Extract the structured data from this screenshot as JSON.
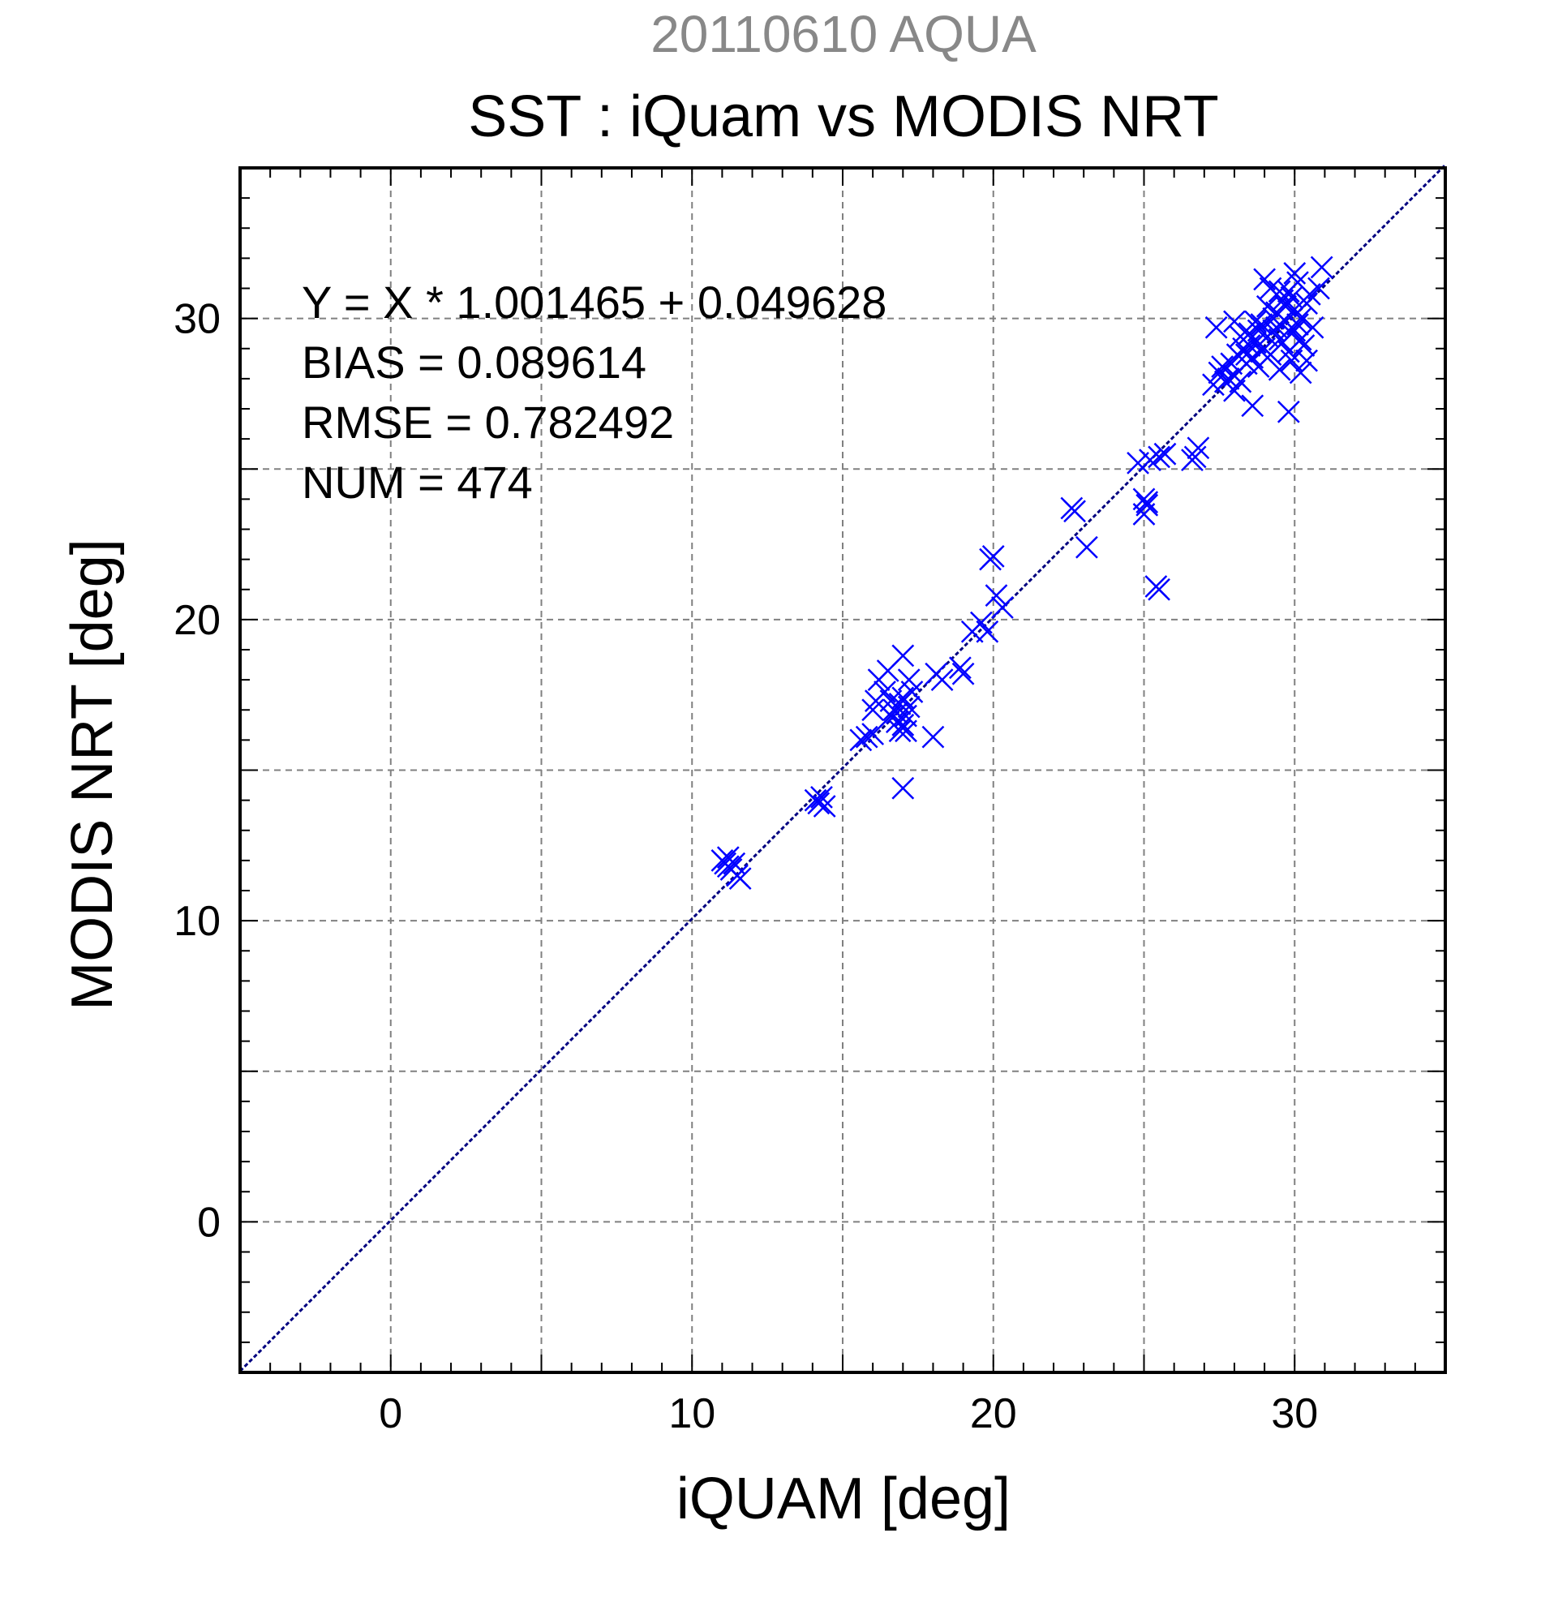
{
  "chart_data": {
    "type": "scatter",
    "subtitle": "20110610 AQUA",
    "title": "SST : iQuam vs MODIS NRT",
    "xlabel": "iQUAM [deg]",
    "ylabel": "MODIS NRT [deg]",
    "xlim": [
      -5,
      35
    ],
    "ylim": [
      -5,
      35
    ],
    "xticks": [
      "0",
      "10",
      "20",
      "30"
    ],
    "yticks": [
      "0",
      "10",
      "20",
      "30"
    ],
    "grid": true,
    "marker": "x",
    "colors": {
      "points": "#0000ff",
      "fit_line": "#000080",
      "grid": "#808080",
      "subtitle": "#888888"
    },
    "fit_line": {
      "slope": 1.001465,
      "intercept": 0.049628
    },
    "annotations": [
      "Y = X * 1.001465 + 0.049628",
      "BIAS = 0.089614",
      "RMSE = 0.782492",
      "NUM = 474"
    ],
    "series": [
      {
        "points": [
          [
            11.0,
            12.0
          ],
          [
            11.1,
            11.9
          ],
          [
            11.2,
            12.1
          ],
          [
            11.3,
            11.7
          ],
          [
            11.4,
            11.9
          ],
          [
            11.5,
            11.5
          ],
          [
            11.2,
            11.8
          ],
          [
            11.6,
            11.4
          ],
          [
            14.1,
            14.0
          ],
          [
            14.2,
            13.9
          ],
          [
            14.3,
            14.1
          ],
          [
            14.4,
            13.8
          ],
          [
            15.6,
            16.0
          ],
          [
            15.8,
            16.1
          ],
          [
            16.0,
            16.2
          ],
          [
            16.0,
            17.0
          ],
          [
            16.1,
            17.3
          ],
          [
            16.2,
            18.0
          ],
          [
            16.4,
            17.6
          ],
          [
            16.5,
            18.3
          ],
          [
            16.6,
            16.8
          ],
          [
            16.7,
            17.0
          ],
          [
            16.8,
            16.6
          ],
          [
            16.9,
            17.2
          ],
          [
            16.9,
            16.3
          ],
          [
            17.0,
            17.4
          ],
          [
            17.0,
            16.5
          ],
          [
            17.1,
            16.8
          ],
          [
            17.2,
            17.1
          ],
          [
            17.0,
            18.8
          ],
          [
            17.2,
            18.0
          ],
          [
            17.3,
            17.6
          ],
          [
            17.1,
            16.3
          ],
          [
            17.0,
            14.4
          ],
          [
            16.6,
            17.3
          ],
          [
            16.8,
            16.9
          ],
          [
            18.0,
            16.1
          ],
          [
            18.1,
            18.2
          ],
          [
            18.3,
            18.0
          ],
          [
            18.9,
            18.4
          ],
          [
            19.0,
            18.2
          ],
          [
            19.3,
            19.6
          ],
          [
            19.6,
            19.9
          ],
          [
            19.8,
            19.6
          ],
          [
            19.9,
            22.0
          ],
          [
            20.0,
            22.1
          ],
          [
            20.1,
            20.8
          ],
          [
            20.3,
            20.4
          ],
          [
            22.6,
            23.7
          ],
          [
            22.7,
            23.6
          ],
          [
            23.1,
            22.4
          ],
          [
            24.8,
            25.2
          ],
          [
            25.0,
            24.0
          ],
          [
            25.1,
            23.8
          ],
          [
            25.0,
            23.5
          ],
          [
            25.2,
            25.3
          ],
          [
            25.1,
            23.9
          ],
          [
            25.4,
            21.1
          ],
          [
            25.5,
            21.0
          ],
          [
            25.5,
            25.4
          ],
          [
            25.7,
            25.5
          ],
          [
            26.6,
            25.3
          ],
          [
            26.7,
            25.4
          ],
          [
            26.8,
            25.7
          ],
          [
            27.3,
            27.8
          ],
          [
            27.4,
            29.7
          ],
          [
            27.5,
            28.2
          ],
          [
            27.6,
            28.4
          ],
          [
            27.7,
            27.9
          ],
          [
            27.8,
            28.0
          ],
          [
            27.9,
            28.5
          ],
          [
            28.0,
            28.1
          ],
          [
            28.0,
            27.6
          ],
          [
            28.1,
            28.8
          ],
          [
            28.2,
            29.4
          ],
          [
            28.2,
            27.9
          ],
          [
            28.3,
            29.0
          ],
          [
            28.4,
            28.5
          ],
          [
            28.5,
            29.5
          ],
          [
            28.6,
            28.7
          ],
          [
            28.7,
            29.2
          ],
          [
            28.8,
            28.4
          ],
          [
            28.9,
            29.8
          ],
          [
            29.0,
            29.0
          ],
          [
            29.0,
            31.3
          ],
          [
            29.1,
            30.4
          ],
          [
            29.2,
            28.8
          ],
          [
            29.2,
            31.0
          ],
          [
            29.3,
            29.6
          ],
          [
            29.4,
            30.2
          ],
          [
            29.5,
            29.3
          ],
          [
            29.5,
            28.3
          ],
          [
            29.6,
            30.6
          ],
          [
            29.7,
            29.9
          ],
          [
            29.8,
            30.9
          ],
          [
            29.8,
            26.9
          ],
          [
            29.9,
            29.5
          ],
          [
            29.9,
            28.6
          ],
          [
            30.0,
            30.3
          ],
          [
            30.1,
            29.8
          ],
          [
            30.1,
            31.2
          ],
          [
            30.2,
            28.2
          ],
          [
            30.2,
            30.0
          ],
          [
            30.3,
            29.1
          ],
          [
            30.4,
            30.5
          ],
          [
            30.4,
            28.6
          ],
          [
            30.5,
            30.8
          ],
          [
            30.6,
            29.7
          ],
          [
            30.8,
            31.0
          ],
          [
            30.9,
            31.7
          ],
          [
            28.6,
            27.1
          ],
          [
            28.0,
            29.9
          ],
          [
            28.5,
            29.1
          ],
          [
            28.9,
            28.9
          ],
          [
            29.3,
            30.0
          ],
          [
            29.6,
            29.2
          ],
          [
            29.7,
            30.4
          ],
          [
            30.0,
            29.6
          ],
          [
            29.4,
            29.7
          ],
          [
            29.1,
            29.4
          ],
          [
            28.8,
            29.6
          ],
          [
            29.9,
            30.7
          ],
          [
            30.2,
            29.3
          ],
          [
            29.5,
            30.9
          ],
          [
            28.4,
            28.8
          ],
          [
            28.7,
            29.9
          ],
          [
            30.0,
            31.5
          ],
          [
            29.8,
            28.9
          ]
        ]
      }
    ]
  }
}
